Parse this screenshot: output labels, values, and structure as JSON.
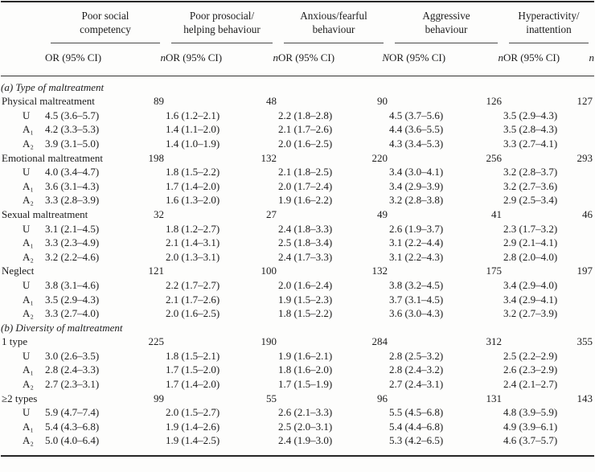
{
  "table": {
    "col_groups": [
      {
        "title_line1": "Poor social",
        "title_line2": "competency",
        "or_header": "OR (95% CI)",
        "n_header": "n"
      },
      {
        "title_line1": "Poor prosocial/",
        "title_line2": "helping behaviour",
        "or_header": "OR (95% CI)",
        "n_header": "n"
      },
      {
        "title_line1": "Anxious/fearful",
        "title_line2": "behaviour",
        "or_header": "OR (95% CI)",
        "n_header": "N"
      },
      {
        "title_line1": "Aggressive",
        "title_line2": "behaviour",
        "or_header": "OR (95% CI)",
        "n_header": "n"
      },
      {
        "title_line1": "Hyperactivity/",
        "title_line2": "inattention",
        "or_header": "OR (95% CI)",
        "n_header": "n"
      }
    ],
    "sections": [
      {
        "heading": "(a) Type of maltreatment",
        "groups": [
          {
            "label": "Physical maltreatment",
            "n": [
              "89",
              "48",
              "90",
              "126",
              "127"
            ],
            "rows": [
              {
                "label": "U",
                "or": [
                  "4.5 (3.6–5.7)",
                  "1.6 (1.2–2.1)",
                  "2.2 (1.8–2.8)",
                  "4.5 (3.7–5.6)",
                  "3.5 (2.9–4.3)"
                ]
              },
              {
                "label": "A₁",
                "or": [
                  "4.2 (3.3–5.3)",
                  "1.4 (1.1–2.0)",
                  "2.1 (1.7–2.6)",
                  "4.4 (3.6–5.5)",
                  "3.5 (2.8–4.3)"
                ]
              },
              {
                "label": "A₂",
                "or": [
                  "3.9 (3.1–5.0)",
                  "1.4 (1.0–1.9)",
                  "2.0 (1.6–2.5)",
                  "4.3 (3.4–5.3)",
                  "3.3 (2.7–4.1)"
                ]
              }
            ]
          },
          {
            "label": "Emotional maltreatment",
            "n": [
              "198",
              "132",
              "220",
              "256",
              "293"
            ],
            "rows": [
              {
                "label": "U",
                "or": [
                  "4.0 (3.4–4.7)",
                  "1.8 (1.5–2.2)",
                  "2.1 (1.8–2.5)",
                  "3.4 (3.0–4.1)",
                  "3.2 (2.8–3.7)"
                ]
              },
              {
                "label": "A₁",
                "or": [
                  "3.6 (3.1–4.3)",
                  "1.7 (1.4–2.0)",
                  "2.0 (1.7–2.4)",
                  "3.4 (2.9–3.9)",
                  "3.2 (2.7–3.6)"
                ]
              },
              {
                "label": "A₂",
                "or": [
                  "3.3 (2.8–3.9)",
                  "1.6 (1.3–2.0)",
                  "1.9 (1.6–2.2)",
                  "3.2 (2.8–3.8)",
                  "2.9 (2.5–3.4)"
                ]
              }
            ]
          },
          {
            "label": "Sexual maltreatment",
            "n": [
              "32",
              "27",
              "49",
              "41",
              "46"
            ],
            "rows": [
              {
                "label": "U",
                "or": [
                  "3.1 (2.1–4.5)",
                  "1.8 (1.2–2.7)",
                  "2.4 (1.8–3.3)",
                  "2.6 (1.9–3.7)",
                  "2.3 (1.7–3.2)"
                ]
              },
              {
                "label": "A₁",
                "or": [
                  "3.3 (2.3–4.9)",
                  "2.1 (1.4–3.1)",
                  "2.5 (1.8–3.4)",
                  "3.1 (2.2–4.4)",
                  "2.9 (2.1–4.1)"
                ]
              },
              {
                "label": "A₂",
                "or": [
                  "3.2 (2.2–4.6)",
                  "2.0 (1.3–3.1)",
                  "2.4 (1.7–3.3)",
                  "3.1 (2.2–4.3)",
                  "2.8 (2.0–4.0)"
                ]
              }
            ]
          },
          {
            "label": "Neglect",
            "n": [
              "121",
              "100",
              "132",
              "175",
              "197"
            ],
            "rows": [
              {
                "label": "U",
                "or": [
                  "3.8 (3.1–4.6)",
                  "2.2 (1.7–2.7)",
                  "2.0 (1.6–2.4)",
                  "3.8 (3.2–4.5)",
                  "3.4 (2.9–4.0)"
                ]
              },
              {
                "label": "A₁",
                "or": [
                  "3.5 (2.9–4.3)",
                  "2.1 (1.7–2.6)",
                  "1.9 (1.5–2.3)",
                  "3.7 (3.1–4.5)",
                  "3.4 (2.9–4.1)"
                ]
              },
              {
                "label": "A₂",
                "or": [
                  "3.3 (2.7–4.0)",
                  "2.0 (1.6–2.5)",
                  "1.8 (1.5–2.2)",
                  "3.6 (3.0–4.3)",
                  "3.2 (2.7–3.9)"
                ]
              }
            ]
          }
        ]
      },
      {
        "heading": "(b) Diversity of maltreatment",
        "groups": [
          {
            "label": "1 type",
            "n": [
              "225",
              "190",
              "284",
              "312",
              "355"
            ],
            "rows": [
              {
                "label": "U",
                "or": [
                  "3.0 (2.6–3.5)",
                  "1.8 (1.5–2.1)",
                  "1.9 (1.6–2.1)",
                  "2.8 (2.5–3.2)",
                  "2.5 (2.2–2.9)"
                ]
              },
              {
                "label": "A₁",
                "or": [
                  "2.8 (2.4–3.3)",
                  "1.7 (1.5–2.0)",
                  "1.8 (1.6–2.0)",
                  "2.8 (2.4–3.2)",
                  "2.6 (2.3–2.9)"
                ]
              },
              {
                "label": "A₂",
                "or": [
                  "2.7 (2.3–3.1)",
                  "1.7 (1.4–2.0)",
                  "1.7 (1.5–1.9)",
                  "2.7 (2.4–3.1)",
                  "2.4 (2.1–2.7)"
                ]
              }
            ]
          },
          {
            "label": "≥2 types",
            "n": [
              "99",
              "55",
              "96",
              "131",
              "143"
            ],
            "rows": [
              {
                "label": "U",
                "or": [
                  "5.9 (4.7–7.4)",
                  "2.0 (1.5–2.7)",
                  "2.6 (2.1–3.3)",
                  "5.5 (4.5–6.8)",
                  "4.8 (3.9–5.9)"
                ]
              },
              {
                "label": "A₁",
                "or": [
                  "5.4 (4.3–6.8)",
                  "1.9 (1.4–2.6)",
                  "2.5 (2.0–3.1)",
                  "5.4 (4.4–6.8)",
                  "4.9 (3.9–6.1)"
                ]
              },
              {
                "label": "A₂",
                "or": [
                  "5.0 (4.0–6.4)",
                  "1.9 (1.4–2.5)",
                  "2.4 (1.9–3.0)",
                  "5.3 (4.2–6.5)",
                  "4.6 (3.7–5.7)"
                ]
              }
            ]
          }
        ]
      }
    ]
  }
}
